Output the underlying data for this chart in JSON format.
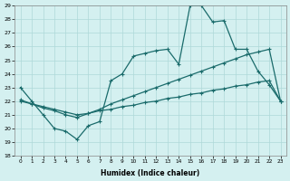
{
  "xlabel": "Humidex (Indice chaleur)",
  "xlim": [
    -0.5,
    23.5
  ],
  "ylim": [
    18,
    29
  ],
  "yticks": [
    18,
    19,
    20,
    21,
    22,
    23,
    24,
    25,
    26,
    27,
    28,
    29
  ],
  "xticks": [
    0,
    1,
    2,
    3,
    4,
    5,
    6,
    7,
    8,
    9,
    10,
    11,
    12,
    13,
    14,
    15,
    16,
    17,
    18,
    19,
    20,
    21,
    22,
    23
  ],
  "line_color": "#1a6b6b",
  "bg_color": "#d4f0f0",
  "grid_color": "#aed8d8",
  "line1_x": [
    0,
    1,
    2,
    3,
    4,
    5,
    6,
    7,
    8,
    9,
    10,
    11,
    12,
    13,
    14,
    15,
    16,
    17,
    18,
    19,
    20,
    21,
    22,
    23
  ],
  "line1_y": [
    23.0,
    22.0,
    21.0,
    20.0,
    19.8,
    19.2,
    20.2,
    20.5,
    23.5,
    24.0,
    25.3,
    25.5,
    25.7,
    25.8,
    24.7,
    29.0,
    29.0,
    27.8,
    27.9,
    25.8,
    25.8,
    24.2,
    23.2,
    22.0
  ],
  "line2_x": [
    0,
    1,
    2,
    3,
    4,
    5,
    6,
    7,
    8,
    9,
    10,
    11,
    12,
    13,
    14,
    15,
    16,
    17,
    18,
    19,
    20,
    21,
    22,
    23
  ],
  "line2_y": [
    22.1,
    21.8,
    21.5,
    21.3,
    21.0,
    20.8,
    21.1,
    21.4,
    21.8,
    22.1,
    22.4,
    22.7,
    23.0,
    23.3,
    23.6,
    23.9,
    24.2,
    24.5,
    24.8,
    25.1,
    25.4,
    25.6,
    25.8,
    22.0
  ],
  "line3_x": [
    0,
    1,
    2,
    3,
    4,
    5,
    6,
    7,
    8,
    9,
    10,
    11,
    12,
    13,
    14,
    15,
    16,
    17,
    18,
    19,
    20,
    21,
    22,
    23
  ],
  "line3_y": [
    22.0,
    21.8,
    21.6,
    21.4,
    21.2,
    21.0,
    21.1,
    21.3,
    21.4,
    21.6,
    21.7,
    21.9,
    22.0,
    22.2,
    22.3,
    22.5,
    22.6,
    22.8,
    22.9,
    23.1,
    23.2,
    23.4,
    23.5,
    22.0
  ]
}
